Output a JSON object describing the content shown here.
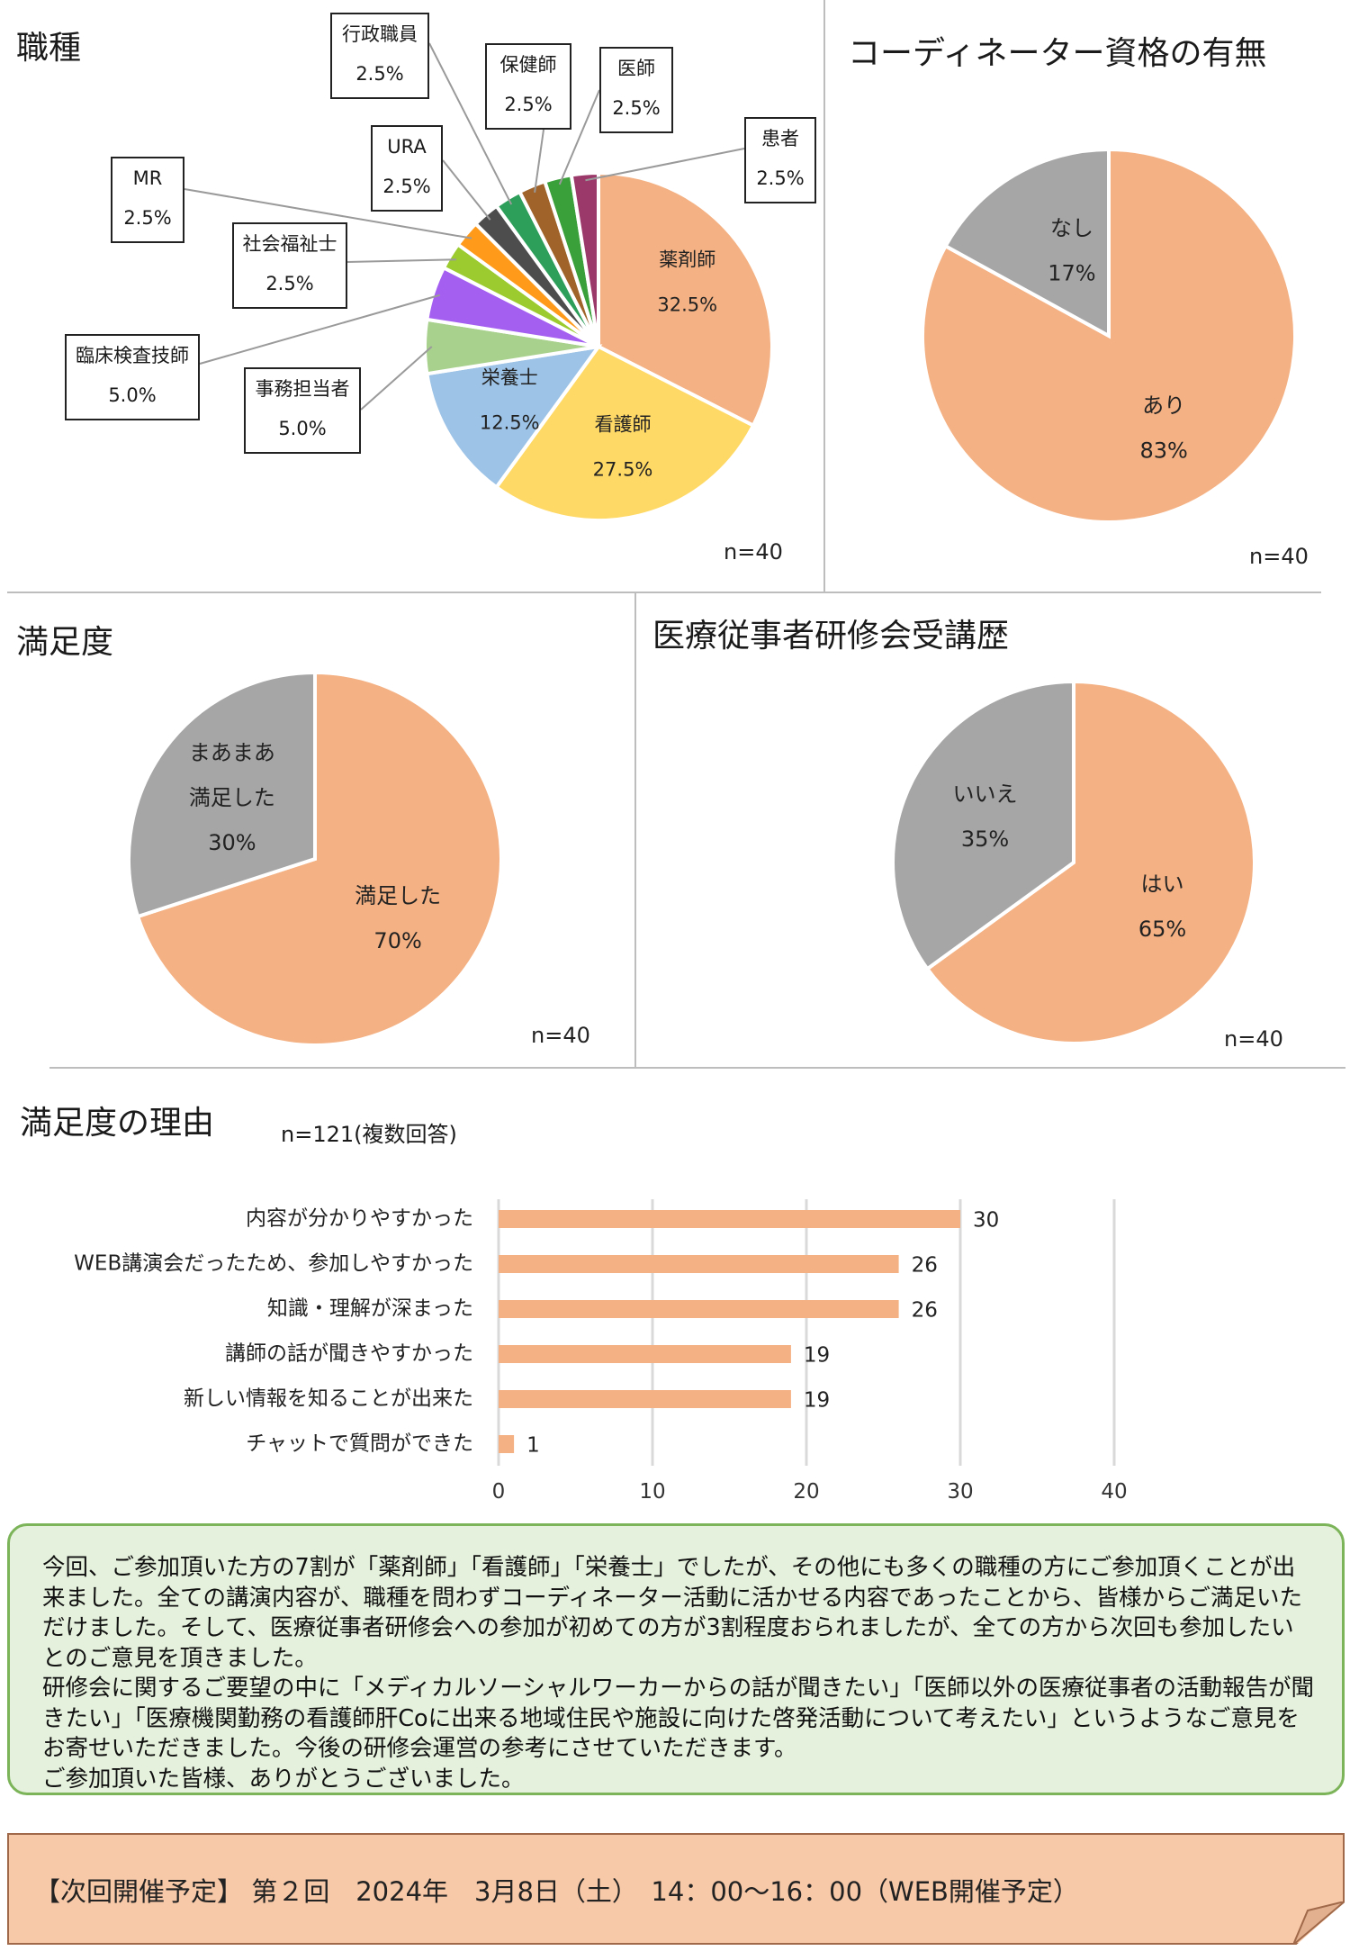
{
  "colors": {
    "orange": "#f4b183",
    "yellow": "#ffd966",
    "light_blue": "#9dc3e6",
    "light_green": "#a9d18e",
    "purple": "#a45ff1",
    "lime": "#9bcb2e",
    "amber": "#ff9a1a",
    "dark_gray": "#4d4d4d",
    "teal_green": "#2e9e5b",
    "brown": "#a0632a",
    "green": "#3aa03a",
    "maroon": "#9b3a6a",
    "gray": "#a6a6a6",
    "summary_bg": "#e5f1dc",
    "footer_bg": "#f8c9a8"
  },
  "chart_data": [
    {
      "id": "occupation",
      "type": "pie",
      "title": "職種",
      "n_label": "n=40",
      "slices": [
        {
          "label": "薬剤師",
          "value": 32.5,
          "display": "32.5%",
          "color": "#f4b183"
        },
        {
          "label": "看護師",
          "value": 27.5,
          "display": "27.5%",
          "color": "#ffd966"
        },
        {
          "label": "栄養士",
          "value": 12.5,
          "display": "12.5%",
          "color": "#9dc3e6"
        },
        {
          "label": "事務担当者",
          "value": 5.0,
          "display": "5.0%",
          "color": "#a9d18e"
        },
        {
          "label": "臨床検査技師",
          "value": 5.0,
          "display": "5.0%",
          "color": "#a45ff1"
        },
        {
          "label": "社会福祉士",
          "value": 2.5,
          "display": "2.5%",
          "color": "#9bcb2e"
        },
        {
          "label": "MR",
          "value": 2.5,
          "display": "2.5%",
          "color": "#ff9a1a"
        },
        {
          "label": "URA",
          "value": 2.5,
          "display": "2.5%",
          "color": "#4d4d4d"
        },
        {
          "label": "行政職員",
          "value": 2.5,
          "display": "2.5%",
          "color": "#2e9e5b"
        },
        {
          "label": "保健師",
          "value": 2.5,
          "display": "2.5%",
          "color": "#a0632a"
        },
        {
          "label": "医師",
          "value": 2.5,
          "display": "2.5%",
          "color": "#3aa03a"
        },
        {
          "label": "患者",
          "value": 2.5,
          "display": "2.5%",
          "color": "#9b3a6a"
        }
      ]
    },
    {
      "id": "coordinator",
      "type": "pie",
      "title": "コーディネーター資格の有無",
      "n_label": "n=40",
      "slices": [
        {
          "label": "あり",
          "value": 83,
          "display": "83%",
          "color": "#f4b183"
        },
        {
          "label": "なし",
          "value": 17,
          "display": "17%",
          "color": "#a6a6a6"
        }
      ]
    },
    {
      "id": "satisfaction",
      "type": "pie",
      "title": "満足度",
      "n_label": "n=40",
      "slices": [
        {
          "label": "満足した",
          "value": 70,
          "display": "70%",
          "color": "#f4b183"
        },
        {
          "label": "まあまあ満足した",
          "label_lines": [
            "まあまあ",
            "満足した"
          ],
          "value": 30,
          "display": "30%",
          "color": "#a6a6a6"
        }
      ]
    },
    {
      "id": "training_history",
      "type": "pie",
      "title": "医療従事者研修会受講歴",
      "n_label": "n=40",
      "slices": [
        {
          "label": "はい",
          "value": 65,
          "display": "65%",
          "color": "#f4b183"
        },
        {
          "label": "いいえ",
          "value": 35,
          "display": "35%",
          "color": "#a6a6a6"
        }
      ]
    },
    {
      "id": "reasons",
      "type": "bar",
      "orientation": "horizontal",
      "title": "満足度の理由",
      "subtitle": "n=121(複数回答)",
      "categories": [
        "内容が分かりやすかった",
        "WEB講演会だったため、参加しやすかった",
        "知識・理解が深まった",
        "講師の話が聞きやすかった",
        "新しい情報を知ることが出来た",
        "チャットで質問ができた"
      ],
      "values": [
        30,
        26,
        26,
        19,
        19,
        1
      ],
      "xlim": [
        0,
        40
      ],
      "xticks": [
        0,
        10,
        20,
        30,
        40
      ],
      "color": "#f4b183",
      "grid": true
    }
  ],
  "summary": {
    "paragraphs": [
      "今回、ご参加頂いた方の7割が「薬剤師」「看護師」「栄養士」でしたが、その他にも多くの職種の方にご参加頂くことが出来ました。全ての講演内容が、職種を問わずコーディネーター活動に活かせる内容であったことから、皆様からご満足いただけました。そして、医療従事者研修会への参加が初めての方が3割程度おられましたが、全ての方から次回も参加したいとのご意見を頂きました。",
      "研修会に関するご要望の中に「メディカルソーシャルワーカーからの話が聞きたい」「医師以外の医療従事者の活動報告が聞きたい」「医療機関勤務の看護師肝Coに出来る地域住民や施設に向けた啓発活動について考えたい」というようなご意見をお寄せいただきました。今後の研修会運営の参考にさせていただきます。",
      "ご参加頂いた皆様、ありがとうございました。"
    ]
  },
  "footer": {
    "text": "【次回開催予定】 第２回　2024年　3月8日（土）　14：00～16：00（WEB開催予定）"
  }
}
